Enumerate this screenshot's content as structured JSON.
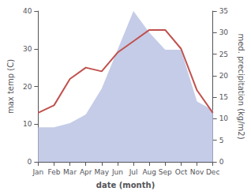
{
  "chart_data": {
    "type": "line",
    "xlabel": "date (month)",
    "ylabel": "max temp (C)",
    "y2label": "med. precipitation (kg/m2)",
    "categories": [
      "Jan",
      "Feb",
      "Mar",
      "Apr",
      "May",
      "Jun",
      "Jul",
      "Aug",
      "Sep",
      "Oct",
      "Nov",
      "Dec"
    ],
    "series": [
      {
        "type": "area",
        "axis": "y2",
        "color": "#c5cce8",
        "values": [
          8,
          8,
          9,
          11,
          17,
          26,
          35,
          30,
          26,
          26,
          14,
          12
        ]
      },
      {
        "type": "line",
        "color": "#c0514d",
        "values": [
          13,
          15,
          22,
          25,
          24,
          29,
          32,
          35,
          35,
          30,
          19,
          13
        ]
      }
    ],
    "ylim": [
      0,
      40
    ],
    "yticks": [
      0,
      10,
      20,
      30,
      40
    ],
    "y2lim": [
      0,
      35
    ],
    "y2ticks": [
      0,
      5,
      10,
      15,
      20,
      25,
      30,
      35
    ],
    "grid": false
  }
}
